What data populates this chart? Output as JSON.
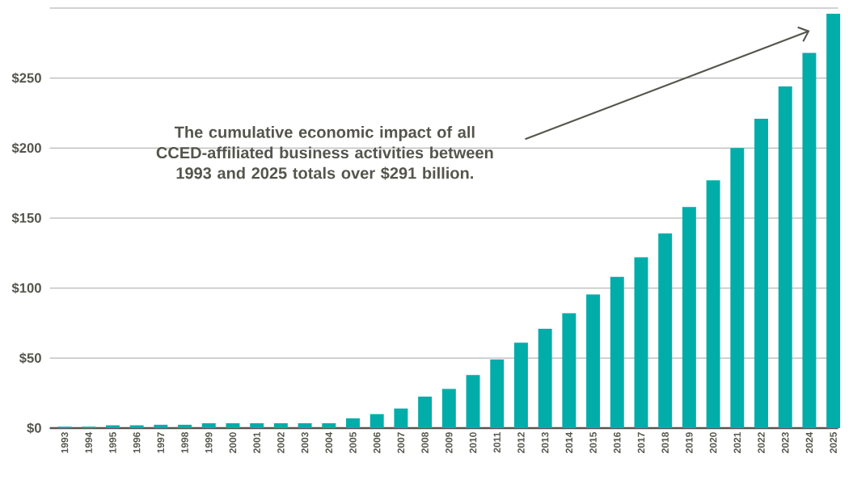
{
  "chart_data": {
    "type": "bar",
    "categories": [
      "1993",
      "1994",
      "1995",
      "1996",
      "1997",
      "1998",
      "1999",
      "2000",
      "2001",
      "2002",
      "2003",
      "2004",
      "2005",
      "2006",
      "2007",
      "2008",
      "2009",
      "2010",
      "2011",
      "2012",
      "2013",
      "2014",
      "2015",
      "2016",
      "2017",
      "2018",
      "2019",
      "2020",
      "2021",
      "2022",
      "2023",
      "2024",
      "2025"
    ],
    "values": [
      1,
      1,
      2,
      2,
      2.4,
      2.4,
      3.5,
      3.5,
      3.5,
      3.5,
      3.5,
      3.5,
      7,
      10,
      14,
      22.5,
      28,
      38,
      49,
      61,
      71,
      82,
      95.5,
      108,
      122,
      139,
      158,
      177,
      200,
      221,
      244,
      268,
      296
    ],
    "color": "#00ada9",
    "ylim": [
      0,
      300
    ],
    "yticks": [
      {
        "value": 0,
        "label": "$0"
      },
      {
        "value": 50,
        "label": "$50"
      },
      {
        "value": 100,
        "label": "$100"
      },
      {
        "value": 150,
        "label": "$150"
      },
      {
        "value": 200,
        "label": "$200"
      },
      {
        "value": 250,
        "label": "$250"
      },
      {
        "value": 300,
        "label": null
      }
    ],
    "grid": "y",
    "annotations": [
      "The cumulative economic impact of all CCED-affiliated business activities between 1993 and 2025 totals over $291 billion."
    ]
  }
}
